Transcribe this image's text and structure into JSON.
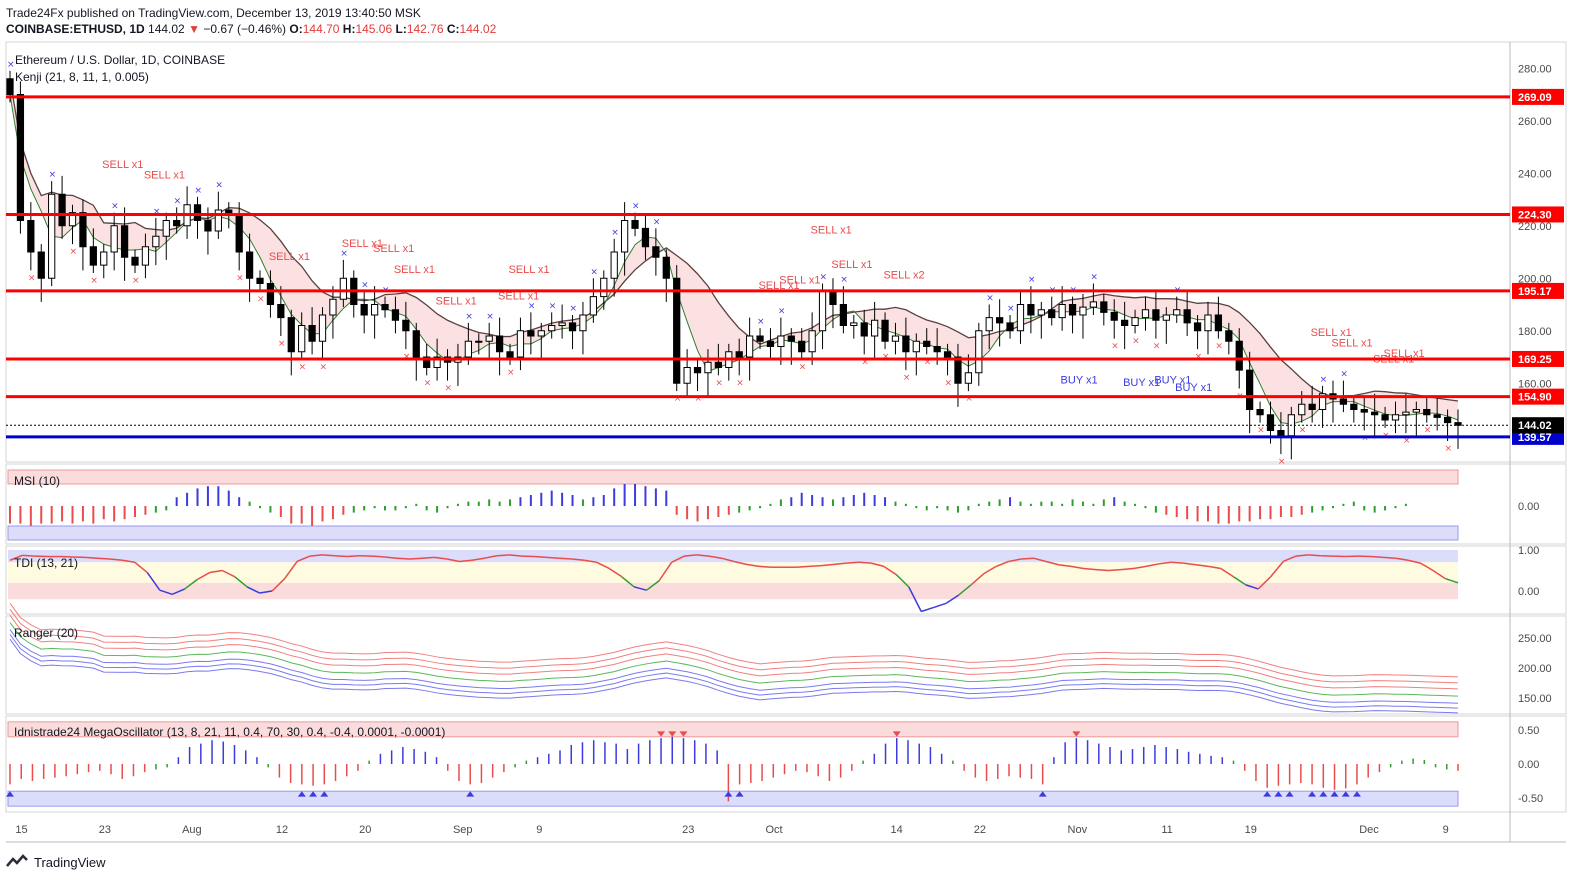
{
  "header": {
    "publisher_line": "Trade24Fx published on TradingView.com, December 13, 2019 13:40:50 MSK",
    "symbol": "COINBASE:ETHUSD, 1D",
    "last": "144.02",
    "change": "−0.67 (−0.46%)",
    "o_label": "O:",
    "o": "144.70",
    "h_label": "H:",
    "h": "145.06",
    "l_label": "L:",
    "l": "142.76",
    "c_label": "C:",
    "c": "144.02"
  },
  "legend": {
    "title": "Ethereum / U.S. Dollar, 1D, COINBASE",
    "indicator": "Kenji (21, 8, 11, 1, 0.005)"
  },
  "panes": {
    "msi": "MSI (10)",
    "tdi": "TDI (13, 21)",
    "ranger": "Ranger (20)",
    "mega": "Idnistrade24 MegaOscillator (13, 8, 21, 11, 0.4, 70, 30, 0.4, -0.4, 0.0001, -0.0001)"
  },
  "footer": {
    "brand": "TradingView"
  },
  "colors": {
    "level_red": "#ff0000",
    "level_blue": "#0000cc",
    "candle_up": "#ffffff",
    "candle_down": "#000000",
    "sell": "#e84c4c",
    "buy": "#3b3be0"
  },
  "chart_data": {
    "type": "candlestick",
    "title": "Ethereum / U.S. Dollar, 1D, COINBASE",
    "ylim": [
      130,
      290
    ],
    "y_ticks": [
      "280.00",
      "260.00",
      "240.00",
      "220.00",
      "200.00",
      "180.00",
      "160.00"
    ],
    "y_tick_values": [
      280,
      260,
      240,
      220,
      200,
      180,
      160
    ],
    "x_ticks": [
      "15",
      "23",
      "Aug",
      "12",
      "20",
      "Sep",
      "9",
      "23",
      "Oct",
      "14",
      "22",
      "Nov",
      "11",
      "19",
      "Dec",
      "9"
    ],
    "x_tick_index": [
      1,
      9,
      17,
      26,
      34,
      43,
      51,
      65,
      73,
      85,
      93,
      102,
      111,
      119,
      130,
      138
    ],
    "levels": [
      {
        "label": "269.09",
        "value": 269.09,
        "color": "red"
      },
      {
        "label": "224.30",
        "value": 224.3,
        "color": "red"
      },
      {
        "label": "195.17",
        "value": 195.17,
        "color": "red"
      },
      {
        "label": "169.25",
        "value": 169.25,
        "color": "red"
      },
      {
        "label": "154.90",
        "value": 154.9,
        "color": "red"
      },
      {
        "label": "139.57",
        "value": 139.57,
        "color": "blue"
      }
    ],
    "last_price": {
      "label": "144.02",
      "value": 144.02
    },
    "closes": [
      270,
      222,
      210,
      200,
      232,
      220,
      225,
      212,
      205,
      210,
      220,
      208,
      205,
      212,
      216,
      222,
      220,
      228,
      222,
      218,
      226,
      224,
      210,
      200,
      198,
      190,
      185,
      172,
      182,
      176,
      186,
      192,
      200,
      190,
      186,
      190,
      188,
      184,
      180,
      170,
      166,
      170,
      168,
      170,
      176,
      176,
      178,
      172,
      170,
      180,
      178,
      180,
      182,
      183,
      180,
      186,
      193,
      200,
      210,
      222,
      219,
      212,
      208,
      200,
      160,
      166,
      164,
      168,
      166,
      172,
      170,
      178,
      176,
      174,
      178,
      176,
      172,
      180,
      195,
      190,
      182,
      183,
      178,
      184,
      176,
      178,
      172,
      176,
      174,
      172,
      170,
      160,
      164,
      180,
      185,
      183,
      180,
      190,
      186,
      188,
      185,
      190,
      186,
      189,
      191,
      187,
      184,
      182,
      185,
      188,
      184,
      186,
      188,
      183,
      180,
      186,
      180,
      176,
      165,
      150,
      148,
      142,
      140,
      148,
      152,
      150,
      156,
      154,
      152,
      150,
      149,
      148,
      146,
      148,
      149,
      150,
      148,
      147,
      145,
      144
    ]
  },
  "msi_data": {
    "y_ticks": [
      "0.00"
    ],
    "values": [
      -8,
      -8,
      -9,
      -8,
      -8,
      -7,
      -8,
      -7,
      -8,
      -6,
      -7,
      -6,
      -5,
      -4,
      -3,
      -2,
      4,
      6,
      8,
      9,
      9,
      7,
      4,
      2,
      -1,
      -3,
      -5,
      -8,
      -8,
      -9,
      -7,
      -6,
      -4,
      -3,
      -2,
      -1,
      -2,
      -2,
      -1,
      1,
      -2,
      -3,
      -1,
      1,
      2,
      2,
      3,
      2,
      3,
      4,
      5,
      6,
      7,
      6,
      5,
      3,
      4,
      5,
      8,
      10,
      10,
      9,
      8,
      7,
      -4,
      -6,
      -7,
      -6,
      -5,
      -4,
      -3,
      -2,
      -1,
      1,
      3,
      4,
      6,
      5,
      4,
      3,
      4,
      5,
      6,
      5,
      4,
      2,
      1,
      -1,
      -2,
      -1,
      -2,
      -3,
      -2,
      1,
      2,
      3,
      4,
      2,
      1,
      2,
      2,
      1,
      3,
      2,
      1,
      3,
      4,
      2,
      1,
      -1,
      -3,
      -4,
      -5,
      -6,
      -7,
      -7,
      -8,
      -8,
      -7,
      -7,
      -6,
      -6,
      -5,
      -5,
      -4,
      -3,
      -2,
      -1,
      1,
      2,
      -2,
      -3,
      -2,
      -1,
      1
    ]
  },
  "tdi_data": {
    "y_ticks": [
      "1.00",
      "0.00"
    ],
    "values": [
      0.75,
      0.87,
      0.85,
      0.84,
      0.84,
      0.83,
      0.82,
      0.8,
      0.78,
      0.75,
      0.7,
      0.45,
      0.02,
      -0.08,
      0.05,
      0.28,
      0.45,
      0.5,
      0.35,
      0.1,
      -0.05,
      0.0,
      0.3,
      0.72,
      0.85,
      0.88,
      0.86,
      0.84,
      0.86,
      0.85,
      0.83,
      0.8,
      0.78,
      0.8,
      0.82,
      0.78,
      0.72,
      0.75,
      0.8,
      0.86,
      0.88,
      0.85,
      0.84,
      0.82,
      0.8,
      0.78,
      0.75,
      0.7,
      0.55,
      0.35,
      0.1,
      0.02,
      0.25,
      0.7,
      0.85,
      0.88,
      0.85,
      0.8,
      0.72,
      0.65,
      0.6,
      0.58,
      0.58,
      0.58,
      0.6,
      0.62,
      0.65,
      0.68,
      0.7,
      0.68,
      0.6,
      0.4,
      0.1,
      -0.5,
      -0.4,
      -0.3,
      -0.1,
      0.15,
      0.42,
      0.6,
      0.72,
      0.78,
      0.8,
      0.72,
      0.64,
      0.6,
      0.55,
      0.52,
      0.5,
      0.52,
      0.55,
      0.6,
      0.66,
      0.7,
      0.68,
      0.64,
      0.6,
      0.55,
      0.35,
      0.15,
      0.05,
      0.35,
      0.72,
      0.85,
      0.88,
      0.86,
      0.85,
      0.84,
      0.85,
      0.84,
      0.82,
      0.8,
      0.75,
      0.68,
      0.5,
      0.3,
      0.2
    ]
  },
  "ranger_data": {
    "y_ticks": [
      "250.00",
      "200.00",
      "150.00"
    ]
  },
  "mega_data": {
    "y_ticks": [
      "0.50",
      "0.00",
      "-0.50"
    ],
    "values": [
      -0.3,
      -0.22,
      -0.25,
      -0.22,
      -0.2,
      -0.18,
      -0.15,
      -0.12,
      -0.1,
      -0.15,
      -0.22,
      -0.18,
      -0.12,
      -0.08,
      -0.05,
      0.1,
      0.25,
      0.3,
      0.35,
      0.33,
      0.28,
      0.2,
      0.1,
      -0.05,
      -0.2,
      -0.28,
      -0.3,
      -0.32,
      -0.3,
      -0.25,
      -0.18,
      -0.1,
      0.05,
      0.15,
      0.2,
      0.25,
      0.22,
      0.18,
      0.1,
      -0.1,
      -0.25,
      -0.3,
      -0.28,
      -0.2,
      -0.12,
      -0.05,
      0.05,
      0.1,
      0.15,
      0.2,
      0.28,
      0.32,
      0.35,
      0.32,
      0.3,
      0.22,
      0.3,
      0.35,
      0.38,
      0.4,
      0.38,
      0.35,
      0.3,
      0.2,
      -0.55,
      -0.3,
      -0.28,
      -0.25,
      -0.2,
      -0.15,
      -0.1,
      -0.12,
      -0.18,
      -0.25,
      -0.2,
      -0.1,
      0.05,
      0.15,
      0.3,
      0.38,
      0.35,
      0.3,
      0.25,
      0.15,
      0.05,
      -0.1,
      -0.2,
      -0.25,
      -0.22,
      -0.18,
      -0.2,
      -0.22,
      -0.3,
      0.1,
      0.32,
      0.38,
      0.35,
      0.3,
      0.25,
      0.2,
      0.22,
      0.25,
      0.28,
      0.25,
      0.22,
      0.18,
      0.15,
      0.12,
      0.1,
      0.05,
      -0.1,
      -0.25,
      -0.35,
      -0.32,
      -0.3,
      -0.28,
      -0.3,
      -0.35,
      -0.38,
      -0.36,
      -0.3,
      -0.2,
      -0.12,
      -0.05,
      0.05,
      0.08,
      0.06,
      -0.05,
      -0.08,
      -0.1
    ]
  },
  "annotations": {
    "sell_label": "SELL x1",
    "sell2_label": "SELL x2",
    "buy_label": "BUY x1"
  }
}
